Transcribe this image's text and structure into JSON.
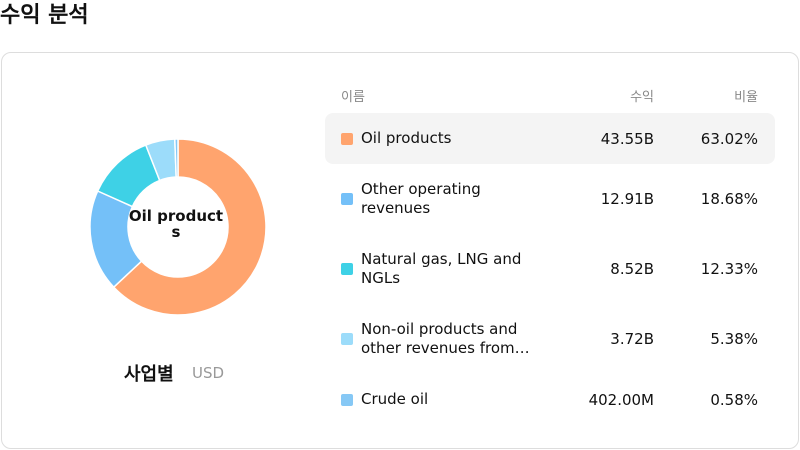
{
  "header": {
    "title": "수익 분석"
  },
  "chart_data": {
    "type": "donut",
    "center_label": "Oil products",
    "caption": "사업별",
    "unit": "USD",
    "categories": [
      "Oil products",
      "Other operating revenues",
      "Natural gas, LNG and NGLs",
      "Non-oil products and other revenues from…",
      "Crude oil"
    ],
    "values": [
      63.02,
      18.68,
      12.33,
      5.38,
      0.58
    ],
    "value_labels": [
      "63.02%",
      "18.68%",
      "12.33%",
      "5.38%",
      "0.58%"
    ],
    "colors": [
      "#FFA46E",
      "#74C0F8",
      "#3ED1E6",
      "#9CDCFA",
      "#86C8F5"
    ]
  },
  "table": {
    "columns": [
      "이름",
      "수익",
      "비율"
    ],
    "revenue": [
      "43.55B",
      "12.91B",
      "8.52B",
      "3.72B",
      "402.00M"
    ]
  }
}
